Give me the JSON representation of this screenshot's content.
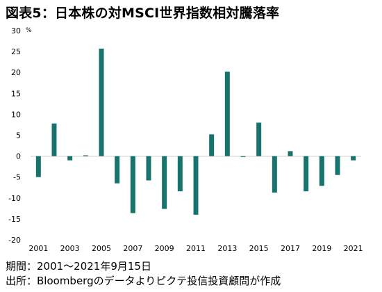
{
  "title": "図表5：日本株の対MSCI世界指数相対騰落率",
  "colors": {
    "bar": "#17736d",
    "zero_line": "#c9c9c9",
    "text": "#000000"
  },
  "chart_data": {
    "type": "bar",
    "title": "図表5：日本株の対MSCI世界指数相対騰落率",
    "unit_label": "%",
    "categories": [
      "2001",
      "2002",
      "2003",
      "2004",
      "2005",
      "2006",
      "2007",
      "2008",
      "2009",
      "2010",
      "2011",
      "2012",
      "2013",
      "2014",
      "2015",
      "2016",
      "2017",
      "2018",
      "2019",
      "2020",
      "2021"
    ],
    "x_tick_labels": [
      "2001",
      "2003",
      "2005",
      "2007",
      "2009",
      "2011",
      "2013",
      "2015",
      "2017",
      "2019",
      "2021"
    ],
    "values": [
      -5.0,
      7.8,
      -1.0,
      0.2,
      25.7,
      -6.5,
      -13.6,
      -5.8,
      -12.6,
      -8.4,
      -14.0,
      5.2,
      20.2,
      -0.2,
      8.0,
      -8.7,
      1.2,
      -8.4,
      -7.1,
      -4.5,
      -1.0
    ],
    "ylim": [
      -20,
      30
    ],
    "y_ticks": [
      30,
      25,
      20,
      15,
      10,
      5,
      0,
      -5,
      -10,
      -15,
      -20
    ],
    "grid": false,
    "legend": "none"
  },
  "notes": {
    "period": "期間：2001～2021年9月15日",
    "source": "出所：Bloombergのデータよりピクテ投信投資顧問が作成"
  }
}
